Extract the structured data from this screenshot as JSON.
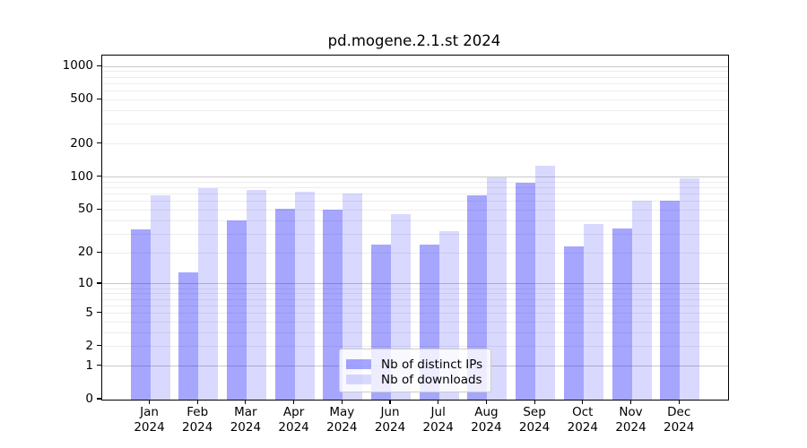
{
  "chart_data": {
    "type": "bar",
    "title": "pd.mogene.2.1.st 2024",
    "categories": [
      {
        "month": "Jan",
        "year": "2024"
      },
      {
        "month": "Feb",
        "year": "2024"
      },
      {
        "month": "Mar",
        "year": "2024"
      },
      {
        "month": "Apr",
        "year": "2024"
      },
      {
        "month": "May",
        "year": "2024"
      },
      {
        "month": "Jun",
        "year": "2024"
      },
      {
        "month": "Jul",
        "year": "2024"
      },
      {
        "month": "Aug",
        "year": "2024"
      },
      {
        "month": "Sep",
        "year": "2024"
      },
      {
        "month": "Oct",
        "year": "2024"
      },
      {
        "month": "Nov",
        "year": "2024"
      },
      {
        "month": "Dec",
        "year": "2024"
      }
    ],
    "series": [
      {
        "name": "Nb of distinct IPs",
        "base_color": "#0000ff",
        "alpha": 0.35,
        "rendered_color": "#a6a6ff",
        "values": [
          33,
          13,
          40,
          51,
          50,
          24,
          24,
          68,
          88,
          23,
          34,
          61
        ]
      },
      {
        "name": "Nb of downloads",
        "base_color": "#0000ff",
        "alpha": 0.15,
        "rendered_color": "#d9d9ff",
        "values": [
          68,
          79,
          77,
          73,
          71,
          46,
          32,
          100,
          126,
          37,
          61,
          97
        ]
      }
    ],
    "xlabel": "",
    "ylabel": "",
    "y_scale": "log10(value+1)",
    "y_ticks": [
      0,
      1,
      2,
      5,
      10,
      20,
      50,
      100,
      200,
      500,
      1000
    ],
    "y_grid_major": [
      1,
      10,
      100,
      1000
    ],
    "y_minor_decades": [
      1,
      10,
      100
    ],
    "ylim": [
      0,
      1256
    ],
    "grid": "both",
    "legend_position": "lower center"
  },
  "colors": {
    "background": "#ffffff",
    "axis": "#000000",
    "grid_major": "#c9c9c9",
    "grid_minor": "#ededed",
    "legend_border": "#cccccc"
  }
}
